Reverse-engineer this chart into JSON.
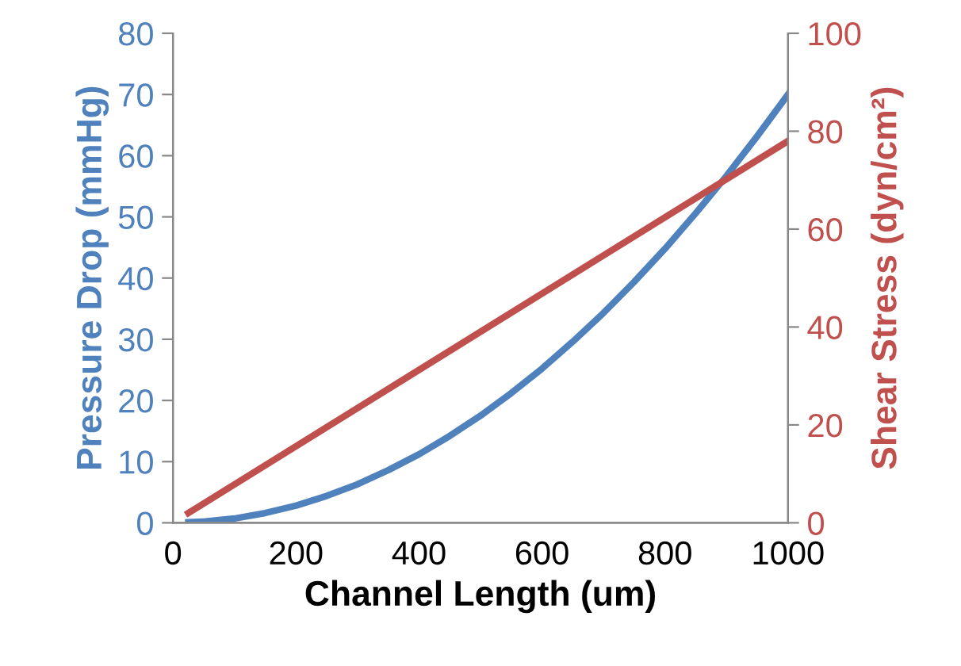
{
  "chart_data": {
    "type": "line",
    "xlabel": "Channel Length (um)",
    "ylabel": "Pressure Drop (mmHg)",
    "y2label": "Shear Stress (dyn/cm²)",
    "xlim": [
      0,
      1000
    ],
    "xticks": [
      0,
      200,
      400,
      600,
      800,
      1000
    ],
    "ylim": [
      0,
      80
    ],
    "yticks": [
      0,
      10,
      20,
      30,
      40,
      50,
      60,
      70,
      80
    ],
    "y2lim": [
      0,
      100
    ],
    "y2ticks": [
      0,
      20,
      40,
      60,
      80,
      100
    ],
    "grid": false,
    "legend": false,
    "marker": "none",
    "line_style": "solid",
    "series": [
      {
        "color": "#4f81bd",
        "x": [
          25,
          50,
          100,
          150,
          200,
          250,
          300,
          350,
          400,
          450,
          500,
          550,
          600,
          650,
          700,
          750,
          800,
          850,
          900,
          950,
          1000
        ],
        "values": [
          0.1,
          0.2,
          0.7,
          1.6,
          2.8,
          4.4,
          6.3,
          8.6,
          11.2,
          14.2,
          17.5,
          21.2,
          25.2,
          29.6,
          34.3,
          39.4,
          44.8,
          50.6,
          56.7,
          63.2,
          70
        ]
      },
      {
        "color": "#c0504d",
        "axis": "y2",
        "x": [
          25,
          1000
        ],
        "values": [
          2,
          78
        ]
      }
    ]
  }
}
